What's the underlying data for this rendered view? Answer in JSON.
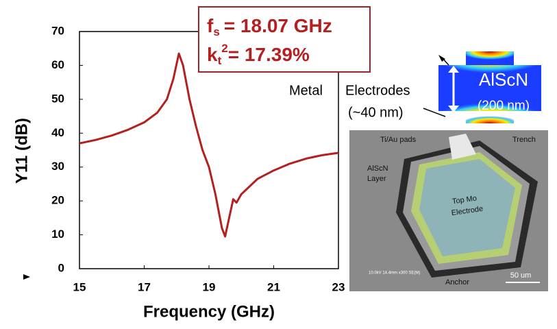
{
  "chart_data": {
    "type": "line",
    "xlabel": "Frequency (GHz)",
    "ylabel": "Y11 (dB)",
    "x": [
      15,
      15.5,
      16,
      16.5,
      17,
      17.4,
      17.7,
      17.9,
      18.07,
      18.2,
      18.4,
      18.6,
      18.8,
      19.0,
      19.2,
      19.4,
      19.5,
      19.6,
      19.75,
      19.85,
      20.0,
      20.5,
      21,
      21.5,
      22,
      22.5,
      23
    ],
    "series": [
      {
        "color": "#b41f1f",
        "values": [
          37,
          38,
          39.3,
          41,
          43.2,
          46,
          50,
          56,
          63.5,
          60,
          50,
          42,
          35,
          30,
          22,
          12,
          9.5,
          14,
          20.5,
          19.5,
          22,
          26.5,
          29,
          31,
          32.5,
          33.5,
          34.2
        ]
      }
    ],
    "xlim": [
      15,
      23
    ],
    "ylim": [
      0,
      70
    ],
    "xticks": [
      15,
      17,
      19,
      21,
      23
    ],
    "yticks": [
      0,
      10,
      20,
      30,
      40,
      50,
      60,
      70
    ],
    "annotations": {
      "fs": {
        "symbol": "f",
        "sub": "s",
        "rest": "= 18.07 GHz"
      },
      "kt": {
        "symbol": "k",
        "sub": "t",
        "sup": "2",
        "rest": "= 17.39%"
      },
      "metal": "Metal",
      "electrodes": "Electrodes",
      "thickness": "(~40 nm)",
      "material": "AlScN",
      "material_thickness": "(200 nm)",
      "sem": {
        "pads": "Ti/Au pads",
        "trench": "Trench",
        "layer1": "AlScN",
        "layer2": "Layer",
        "electrode1": "Top Mo",
        "electrode2": "Electrode",
        "anchor": "Anchor",
        "scale": "50 um",
        "info": "10.0kV 14.4mm x300 SE(M)"
      }
    }
  }
}
